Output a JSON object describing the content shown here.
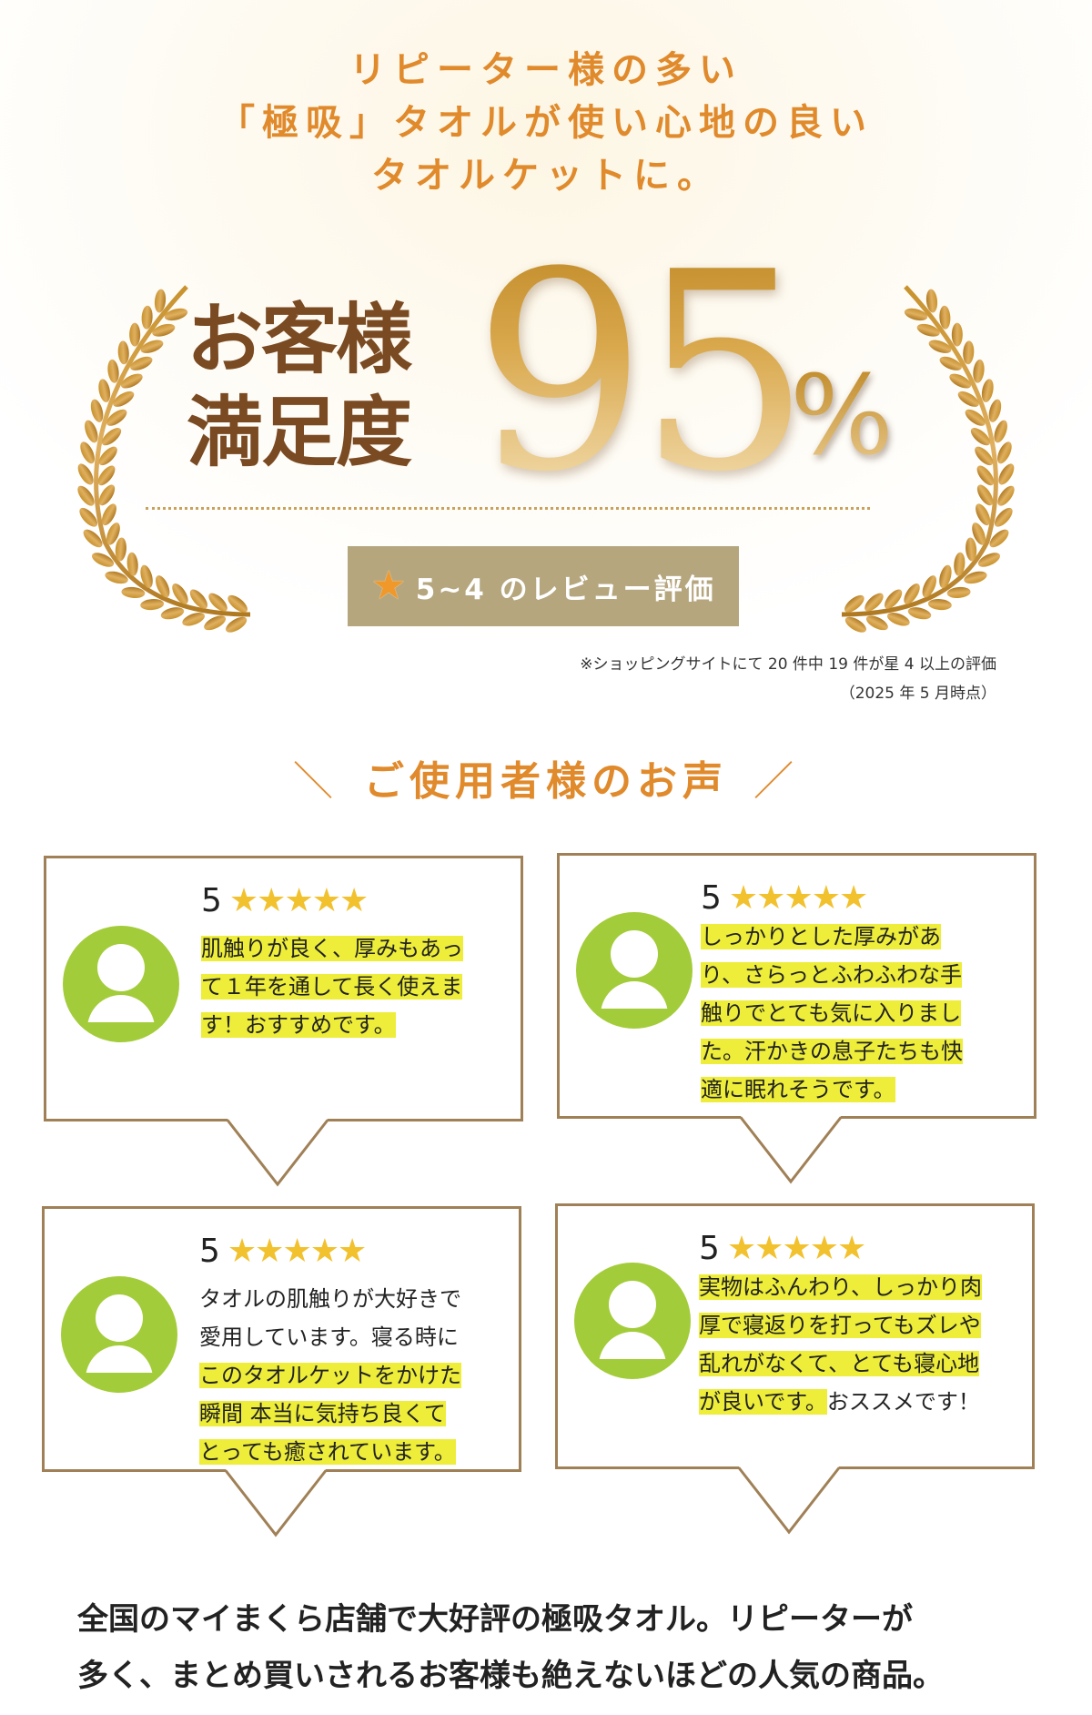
{
  "headline": {
    "lines": [
      "リピーター様の多い",
      "「極吸」タオルが使い心地の良い",
      "タオルケットに。"
    ]
  },
  "satisfaction": {
    "label_line1": "お客様",
    "label_line2": "満足度",
    "value": "95",
    "unit": "%"
  },
  "badge": {
    "icon": "star-icon",
    "text": "5~4 のレビュー評価"
  },
  "footnote": {
    "line1": "※ショッピングサイトにて 20 件中 19 件が星 4 以上の評価",
    "line2": "（2025 年 5 月時点）"
  },
  "voices_heading": {
    "left": "＼",
    "text": "ご使用者様のお声",
    "right": "／"
  },
  "colors": {
    "accent": "#e08a2c",
    "brown": "#7a4a22",
    "gold": "#c08a28",
    "badge": "#b5a67e",
    "avatar": "#a3cc3a",
    "highlight": "#eded3a",
    "star": "#f2c12e",
    "border": "#a08056"
  },
  "reviews": [
    {
      "rating": "5",
      "stars": "★★★★★",
      "lines": [
        [
          {
            "t": "肌触りが良く、厚みもあっ",
            "hl": true
          }
        ],
        [
          {
            "t": "て１年を通して長く使えま",
            "hl": true
          }
        ],
        [
          {
            "t": "す！おすすめです。",
            "hl": true
          }
        ]
      ]
    },
    {
      "rating": "5",
      "stars": "★★★★★",
      "lines": [
        [
          {
            "t": "しっかりとした厚みがあ",
            "hl": true
          }
        ],
        [
          {
            "t": "り、さらっとふわふわな手",
            "hl": true
          }
        ],
        [
          {
            "t": "触りでとても気に入りまし",
            "hl": true
          }
        ],
        [
          {
            "t": "た。汗かきの息子たちも快",
            "hl": true
          }
        ],
        [
          {
            "t": "適に眠れそうです。",
            "hl": true
          }
        ]
      ]
    },
    {
      "rating": "5",
      "stars": "★★★★★",
      "lines": [
        [
          {
            "t": "タオルの肌触りが大好きで",
            "hl": false
          }
        ],
        [
          {
            "t": "愛用しています。寝る時に",
            "hl": false
          }
        ],
        [
          {
            "t": "このタオルケットをかけた",
            "hl": true
          }
        ],
        [
          {
            "t": "瞬間 本当に気持ち良くて",
            "hl": true
          }
        ],
        [
          {
            "t": "とっても癒されています。",
            "hl": true
          }
        ]
      ]
    },
    {
      "rating": "5",
      "stars": "★★★★★",
      "lines": [
        [
          {
            "t": "実物はふんわり、しっかり肉",
            "hl": true
          }
        ],
        [
          {
            "t": "厚で寝返りを打ってもズレや",
            "hl": true
          }
        ],
        [
          {
            "t": "乱れがなくて、とても寝心地",
            "hl": true
          }
        ],
        [
          {
            "t": "が良いです。",
            "hl": true
          },
          {
            "t": "おススメです！",
            "hl": false
          }
        ]
      ]
    }
  ],
  "bottom_text": {
    "line1": "全国のマイまくら店舗で大好評の極吸タオル。リピーターが",
    "line2": "多く、まとめ買いされるお客様も絶えないほどの人気の商品。"
  }
}
